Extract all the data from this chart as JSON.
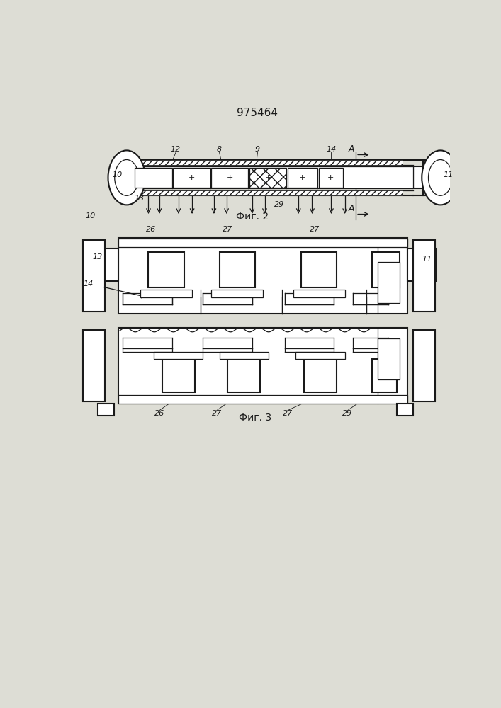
{
  "title": "975464",
  "fig2_label": "Фиг. 2",
  "fig3_label": "Фиг. 3",
  "bg_color": "#e8e8e0",
  "line_color": "#1a1a1a"
}
